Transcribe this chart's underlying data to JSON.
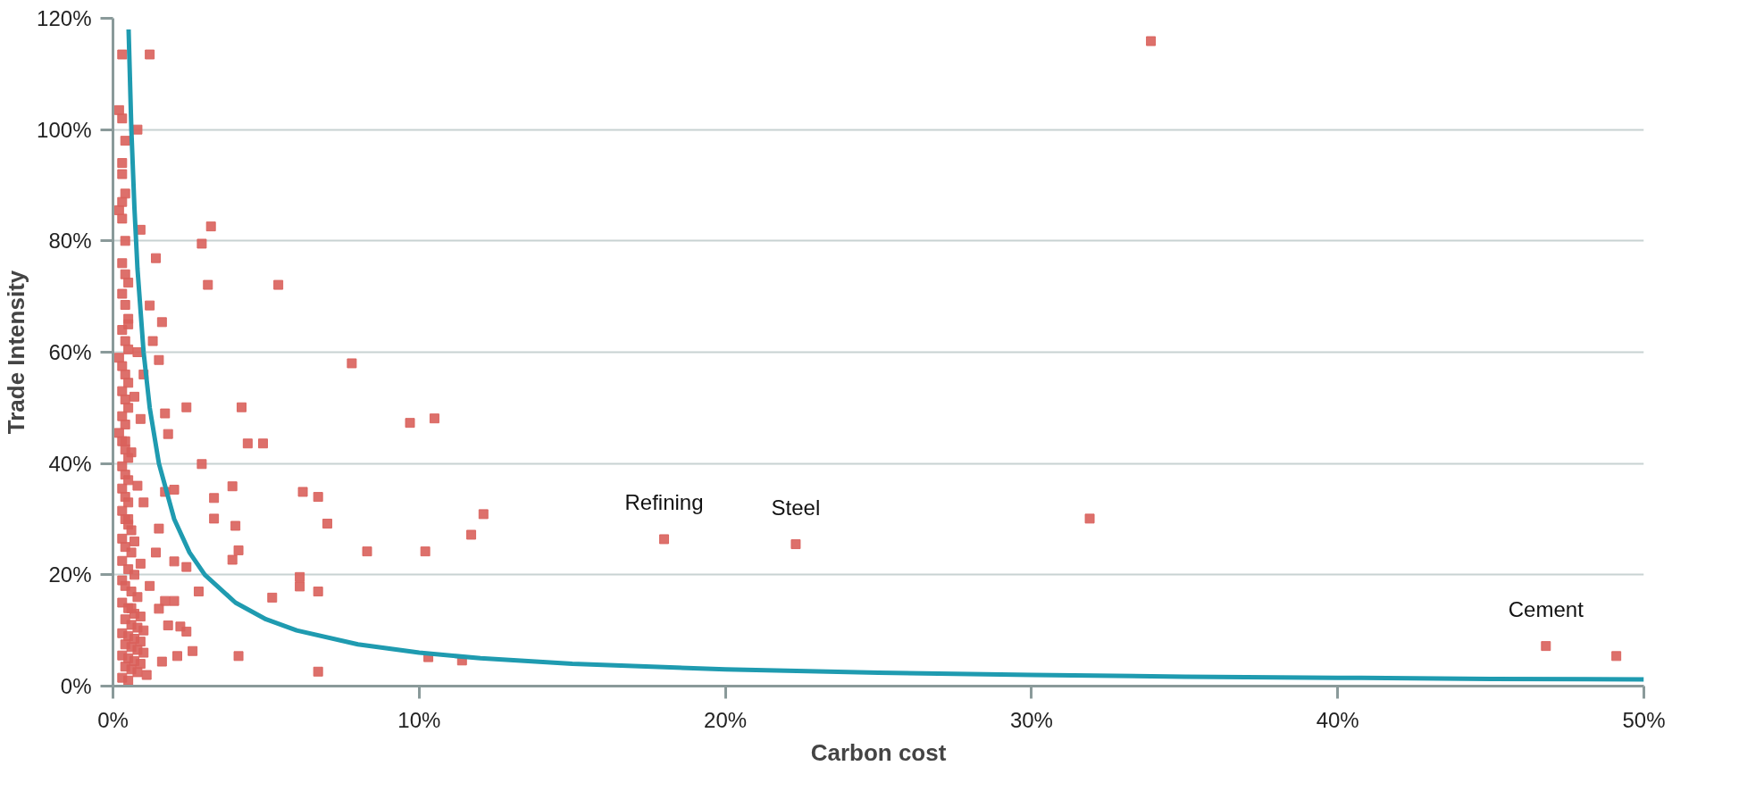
{
  "chart_data": {
    "type": "scatter",
    "xlabel": "Carbon cost",
    "ylabel": "Trade Intensity",
    "xlim": [
      0,
      50
    ],
    "ylim": [
      0,
      120
    ],
    "xticks": [
      {
        "value": 0,
        "label": "0%"
      },
      {
        "value": 10,
        "label": "10%"
      },
      {
        "value": 20,
        "label": "20%"
      },
      {
        "value": 30,
        "label": "30%"
      },
      {
        "value": 40,
        "label": "40%"
      },
      {
        "value": 50,
        "label": "50%"
      }
    ],
    "yticks": [
      {
        "value": 0,
        "label": "0%"
      },
      {
        "value": 20,
        "label": "20%"
      },
      {
        "value": 40,
        "label": "40%"
      },
      {
        "value": 60,
        "label": "60%"
      },
      {
        "value": 80,
        "label": "80%"
      },
      {
        "value": 100,
        "label": "100%"
      },
      {
        "value": 120,
        "label": "120%"
      }
    ],
    "grid": "y",
    "annotations": [
      {
        "text": "Refining",
        "x": 18.0,
        "y": 26.4
      },
      {
        "text": "Steel",
        "x": 22.3,
        "y": 25.5
      },
      {
        "text": "Cement",
        "x": 46.8,
        "y": 7.2
      }
    ],
    "series": [
      {
        "color": "#d9605b",
        "marker": "square",
        "x": [
          33.9,
          31.9,
          18.0,
          22.3,
          46.8,
          49.1,
          7.8,
          5.4,
          3.2,
          2.9,
          3.1,
          4.2,
          4.4,
          4.9,
          9.7,
          10.5,
          12.1,
          11.7,
          7.0,
          6.2,
          6.7,
          8.3,
          10.2,
          2.9,
          2.4,
          3.3,
          3.3,
          3.9,
          4.0,
          4.1,
          3.9,
          6.1,
          6.1,
          6.7,
          5.2,
          2.8,
          6.7,
          4.1,
          10.3,
          11.4,
          2.4,
          2.2,
          2.6,
          2.1,
          1.6,
          1.2,
          0.3,
          0.8,
          0.2,
          0.3,
          0.4,
          0.3,
          0.3,
          0.4,
          0.3,
          0.2,
          0.3,
          0.4,
          0.9,
          1.4,
          1.6,
          1.2,
          1.5,
          1.7,
          1.8,
          2.0,
          1.7,
          1.5,
          1.4,
          2.0,
          2.4,
          1.7,
          2.0,
          1.5,
          1.8,
          0.3,
          0.4,
          0.5,
          0.3,
          0.4,
          0.5,
          0.3,
          0.4,
          0.5,
          0.2,
          0.3,
          0.4,
          0.5,
          0.3,
          0.4,
          0.5,
          0.3,
          0.4,
          0.2,
          0.3,
          0.4,
          0.5,
          0.3,
          0.4,
          0.5,
          0.3,
          0.4,
          0.5,
          0.3,
          0.4,
          0.5,
          0.6,
          0.3,
          0.4,
          0.6,
          0.3,
          0.5,
          0.7,
          0.3,
          0.4,
          0.6,
          0.8,
          0.3,
          0.5,
          0.7,
          0.9,
          0.4,
          0.6,
          0.8,
          1.0,
          0.3,
          0.5,
          0.7,
          0.9,
          0.4,
          0.6,
          0.8,
          1.0,
          0.3,
          0.5,
          0.7,
          0.9,
          0.4,
          0.6,
          0.8,
          1.1,
          0.3,
          0.5,
          0.7,
          0.9,
          0.4,
          0.6,
          0.8,
          1.0,
          0.5,
          0.7,
          0.9,
          1.2,
          0.6,
          0.8,
          1.0,
          1.3,
          0.5
        ],
        "values": [
          115.9,
          30.1,
          26.4,
          25.5,
          7.2,
          5.4,
          58.0,
          72.1,
          82.6,
          79.5,
          72.1,
          50.1,
          43.6,
          43.6,
          47.3,
          48.1,
          30.9,
          27.2,
          29.2,
          34.9,
          34.0,
          24.2,
          24.2,
          39.9,
          50.1,
          33.8,
          30.1,
          35.9,
          28.8,
          24.4,
          22.7,
          19.6,
          17.9,
          17.0,
          15.9,
          17.0,
          2.6,
          5.4,
          5.2,
          4.6,
          9.8,
          10.7,
          6.3,
          5.4,
          4.4,
          113.5,
          113.5,
          100.0,
          103.5,
          102.0,
          98.0,
          94.0,
          92.0,
          88.5,
          87.0,
          85.5,
          84.0,
          80.0,
          82.0,
          76.9,
          65.4,
          68.4,
          58.6,
          49.0,
          45.3,
          35.3,
          34.9,
          28.3,
          24.0,
          22.4,
          21.4,
          15.3,
          15.3,
          13.9,
          10.9,
          76.0,
          74.0,
          72.5,
          70.5,
          68.5,
          66.0,
          64.0,
          62.0,
          60.5,
          59.0,
          57.5,
          56.0,
          54.5,
          53.0,
          51.5,
          50.0,
          48.5,
          47.0,
          45.5,
          44.0,
          42.5,
          41.0,
          39.5,
          38.0,
          37.0,
          35.5,
          34.0,
          33.0,
          31.5,
          30.0,
          29.0,
          28.0,
          26.5,
          25.0,
          24.0,
          22.5,
          21.0,
          20.0,
          19.0,
          18.0,
          17.0,
          16.0,
          15.0,
          14.0,
          13.0,
          12.5,
          12.0,
          11.0,
          10.5,
          10.0,
          9.5,
          9.0,
          8.5,
          8.0,
          7.5,
          7.0,
          6.5,
          6.0,
          5.5,
          5.0,
          4.5,
          4.0,
          3.5,
          3.0,
          2.5,
          2.0,
          1.5,
          1.0,
          52.0,
          48.0,
          44.0,
          42.0,
          36.0,
          33.0,
          30.0,
          26.0,
          22.0,
          18.0,
          14.0,
          60.0,
          56.0,
          62.0,
          65.0
        ]
      },
      {
        "type": "line",
        "color": "#1f9bb0",
        "x": [
          0.51,
          0.6,
          0.7,
          0.8,
          1,
          1.2,
          1.5,
          2,
          2.5,
          3,
          4,
          5,
          6,
          8,
          10,
          12,
          15,
          20,
          25,
          30,
          35,
          40,
          45,
          50
        ],
        "values": [
          118,
          100,
          86,
          75,
          60,
          50,
          40,
          30,
          24,
          20,
          15,
          12,
          10,
          7.5,
          6,
          5,
          4,
          3,
          2.4,
          2,
          1.7,
          1.5,
          1.3,
          1.2
        ]
      }
    ]
  }
}
